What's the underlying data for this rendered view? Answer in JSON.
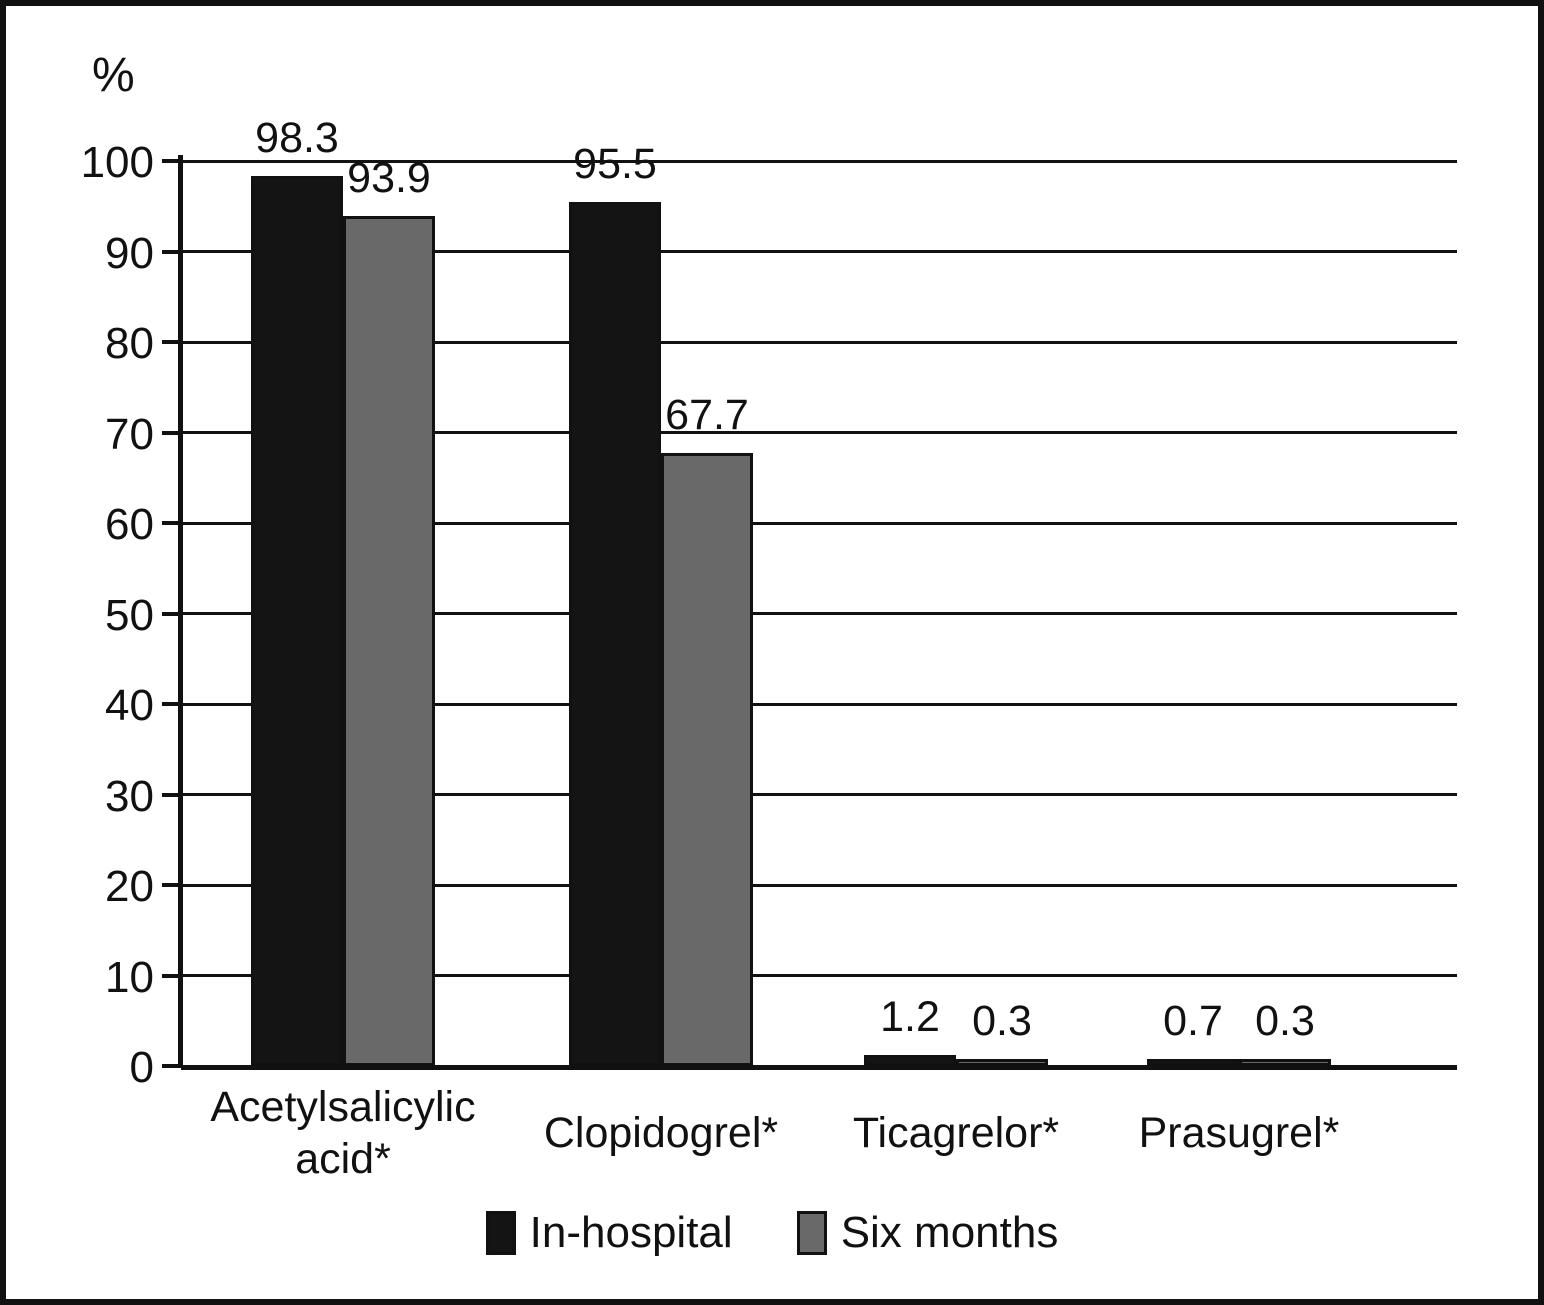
{
  "chart_data": {
    "type": "bar",
    "title": "",
    "xlabel": "",
    "ylabel": "%",
    "categories": [
      "Acetylsalicylic acid*",
      "Clopidogrel*",
      "Ticagrelor*",
      "Prasugrel*"
    ],
    "series": [
      {
        "name": "In-hospital",
        "color": "#141414",
        "values": [
          98.3,
          95.5,
          1.2,
          0.7
        ]
      },
      {
        "name": "Six months",
        "color": "#696969",
        "values": [
          93.9,
          67.7,
          0.3,
          0.3
        ]
      }
    ],
    "value_labels": [
      "98.3",
      "93.9",
      "95.5",
      "67.7",
      "1.2",
      "0.3",
      "0.7",
      "0.3"
    ],
    "ylim": [
      0,
      100
    ],
    "yticks": [
      0,
      10,
      20,
      30,
      40,
      50,
      60,
      70,
      80,
      90,
      100
    ],
    "grid": true,
    "legend_position": "bottom"
  }
}
